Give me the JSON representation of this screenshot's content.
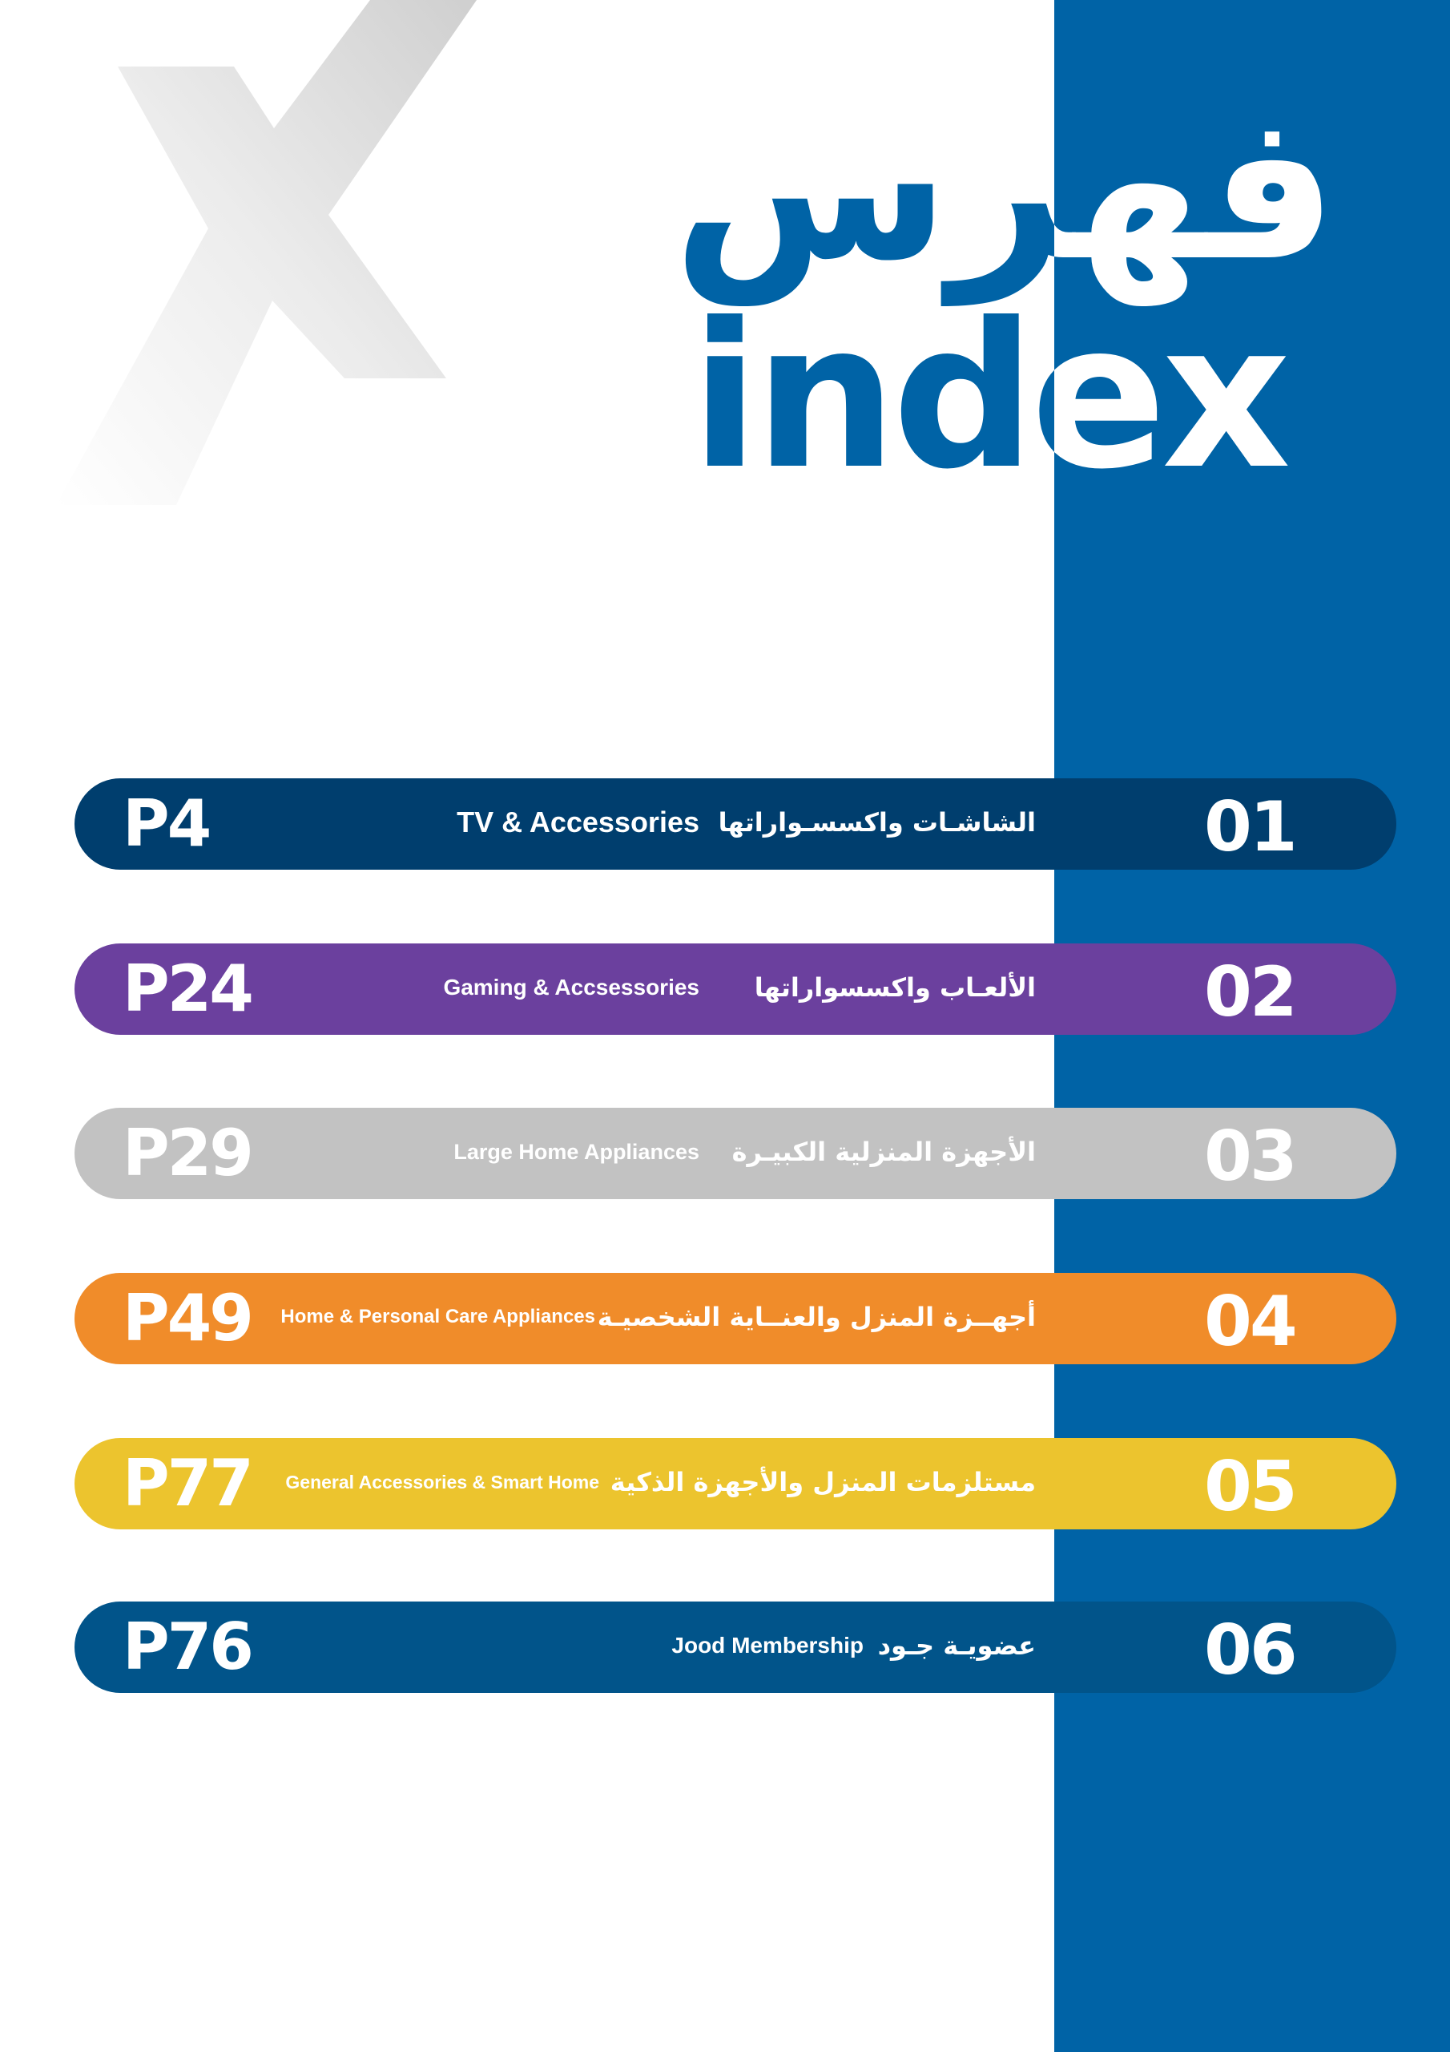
{
  "header": {
    "title_ar": "فهرس",
    "title_en": "index"
  },
  "colors": {
    "panel": "#0063a6",
    "title": "#0063a6"
  },
  "sections": [
    {
      "number": "01",
      "title_ar": "الشاشـات واكسسـواراتها",
      "title_en": "TV &  Accessories",
      "page": "P4",
      "color": "#003e6e"
    },
    {
      "number": "02",
      "title_ar": "الألعـاب واكسسواراتها",
      "title_en": "Gaming & Accsessories",
      "page": "P24",
      "color": "#6b409e"
    },
    {
      "number": "03",
      "title_ar": "الأجهزة المنزلية الكبيـرة",
      "title_en": "Large Home Appliances",
      "page": "P29",
      "color": "#c2c2c2"
    },
    {
      "number": "04",
      "title_ar": "أجهــزة المنزل والعنــاية الشخصيـة",
      "title_en": "Home & Personal Care Appliances",
      "page": "P49",
      "color": "#f08c2a"
    },
    {
      "number": "05",
      "title_ar": "مستلزمات المنزل والأجهزة الذكية",
      "title_en": "General Accessories & Smart Home",
      "page": "P77",
      "color": "#ecc42e"
    },
    {
      "number": "06",
      "title_ar": "عضويـة جـود",
      "title_en": "Jood Membership",
      "page": "P76",
      "color": "#01548a"
    }
  ]
}
